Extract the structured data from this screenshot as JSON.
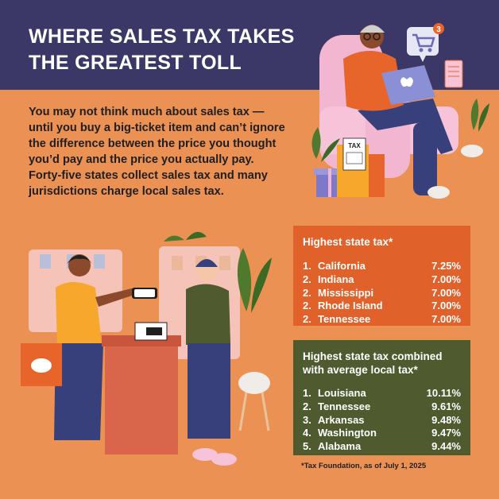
{
  "header": {
    "title": "WHERE SALES TAX TAKES THE GREATEST TOLL"
  },
  "intro": {
    "text": "You may not think much about sales tax — until you buy a big-ticket item and can’t ignore the difference between the price you thought you’d pay and the price you actually pay. Forty-five states collect sales tax and many jurisdictions charge local sales tax."
  },
  "illustration_top": {
    "bag_label": "TAX",
    "cart_badge": "3"
  },
  "highest_state": {
    "heading": "Highest state tax*",
    "rows": [
      {
        "rank": "1.",
        "state": "California",
        "rate": "7.25%"
      },
      {
        "rank": "2.",
        "state": "Indiana",
        "rate": "7.00%"
      },
      {
        "rank": "2.",
        "state": "Mississippi",
        "rate": "7.00%"
      },
      {
        "rank": "2.",
        "state": "Rhode Island",
        "rate": "7.00%"
      },
      {
        "rank": "2.",
        "state": "Tennessee",
        "rate": "7.00%"
      }
    ]
  },
  "highest_combined": {
    "heading": "Highest state tax combined with average local tax*",
    "rows": [
      {
        "rank": "1.",
        "state": "Louisiana",
        "rate": "10.11%"
      },
      {
        "rank": "2.",
        "state": "Tennessee",
        "rate": "9.61%"
      },
      {
        "rank": "3.",
        "state": "Arkansas",
        "rate": "9.48%"
      },
      {
        "rank": "4.",
        "state": "Washington",
        "rate": "9.47%"
      },
      {
        "rank": "5.",
        "state": "Alabama",
        "rate": "9.44%"
      }
    ]
  },
  "footnote": "*Tax Foundation, as of July 1, 2025",
  "colors": {
    "header_bg": "#3b3867",
    "page_bg": "#ec9154",
    "state_box": "#e0612a",
    "combined_box": "#4f5a2e"
  }
}
